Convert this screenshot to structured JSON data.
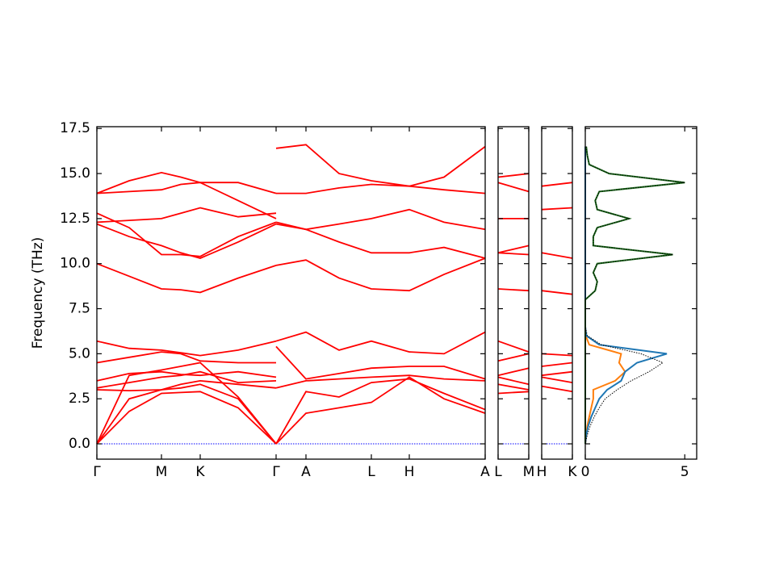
{
  "chart_data": {
    "type": "band",
    "ylabel": "Frequency (THz)",
    "ylim": [
      -0.85,
      17.6
    ],
    "yticks": [
      {
        "value": 0,
        "label": "0.0"
      },
      2.5,
      {
        "value": 5,
        "label": "5.0"
      },
      7.5,
      {
        "value": 10,
        "label": "10.0"
      },
      12.5,
      {
        "value": 15,
        "label": "15.0"
      },
      17.5
    ],
    "zero_line": 0,
    "band_color": "#ff0000",
    "zero_color": "#0000ff",
    "panels": [
      {
        "xlim": [
          0,
          4.81
        ],
        "xticks": [
          {
            "value": 0,
            "label": "Γ"
          },
          {
            "value": 0.8,
            "label": "M"
          },
          {
            "value": 1.28,
            "label": "K"
          },
          {
            "value": 2.22,
            "label": "Γ"
          },
          {
            "value": 2.59,
            "label": "A"
          },
          {
            "value": 3.4,
            "label": "L"
          },
          {
            "value": 3.87,
            "label": "H"
          },
          {
            "value": 4.81,
            "label": "A"
          }
        ],
        "segments": [
          {
            "x": [
              0,
              0.4,
              0.8,
              1.04,
              1.28,
              1.75,
              2.22
            ],
            "bands": [
              [
                0,
                1.8,
                2.8,
                2.85,
                2.9,
                2.0,
                0
              ],
              [
                0,
                2.5,
                3.0,
                3.1,
                3.3,
                2.5,
                0
              ],
              [
                0,
                3.8,
                4.1,
                4.3,
                4.5,
                2.6,
                0
              ],
              [
                3.0,
                2.95,
                3.0,
                3.3,
                3.5,
                3.3,
                3.1
              ],
              [
                3.1,
                3.4,
                3.7,
                3.8,
                4.0,
                3.4,
                3.5
              ],
              [
                3.5,
                3.9,
                4.0,
                3.85,
                3.8,
                4.0,
                3.7
              ],
              [
                4.5,
                4.8,
                5.1,
                5.0,
                4.6,
                4.5,
                4.5
              ],
              [
                5.7,
                5.3,
                5.2,
                5.05,
                4.9,
                5.2,
                5.7
              ],
              [
                10.0,
                9.3,
                8.6,
                8.55,
                8.4,
                9.2,
                9.9
              ],
              [
                12.2,
                11.5,
                11.0,
                10.6,
                10.3,
                11.2,
                12.2
              ],
              [
                12.8,
                12.0,
                10.5,
                10.5,
                10.4,
                11.5,
                12.3
              ],
              [
                12.3,
                12.4,
                12.5,
                12.8,
                13.1,
                12.6,
                12.8
              ],
              [
                13.9,
                14.0,
                14.1,
                14.4,
                14.5,
                13.5,
                12.5
              ],
              [
                13.9,
                14.6,
                15.05,
                14.8,
                14.5,
                14.5,
                13.9
              ]
            ]
          },
          {
            "x": [
              2.22,
              2.59,
              3.0,
              3.4,
              3.87,
              4.3,
              4.81
            ],
            "bands": [
              [
                0,
                1.7,
                2.0,
                2.3,
                3.7,
                2.5,
                1.7
              ],
              [
                0,
                2.9,
                2.6,
                3.4,
                3.6,
                2.8,
                1.9
              ],
              [
                3.1,
                3.5,
                3.6,
                3.7,
                3.8,
                3.6,
                3.5
              ],
              [
                5.4,
                3.6,
                3.9,
                4.2,
                4.3,
                4.3,
                3.6
              ],
              [
                5.7,
                6.2,
                5.2,
                5.7,
                5.1,
                5.0,
                6.2
              ],
              [
                9.9,
                10.2,
                9.2,
                8.6,
                8.5,
                9.4,
                10.3
              ],
              [
                12.2,
                11.9,
                11.2,
                10.6,
                10.6,
                10.9,
                10.3
              ],
              [
                12.3,
                11.9,
                12.2,
                12.5,
                13.0,
                12.3,
                11.9
              ],
              [
                13.9,
                13.9,
                14.2,
                14.4,
                14.3,
                14.1,
                13.9
              ],
              [
                16.4,
                16.6,
                15.0,
                14.6,
                14.3,
                14.8,
                16.5
              ]
            ]
          }
        ]
      },
      {
        "xlim": [
          0,
          0.38
        ],
        "xticks": [
          {
            "value": 0,
            "label": "L"
          },
          {
            "value": 0.38,
            "label": "M"
          }
        ],
        "segments": [
          {
            "x": [
              0,
              0.38
            ],
            "bands": [
              [
                14.5,
                14.0
              ],
              [
                14.8,
                15.0
              ],
              [
                12.5,
                12.5
              ],
              [
                10.6,
                11.0
              ],
              [
                10.6,
                10.5
              ],
              [
                8.6,
                8.5
              ],
              [
                5.7,
                5.1
              ],
              [
                4.6,
                5.0
              ],
              [
                3.8,
                4.2
              ],
              [
                3.7,
                3.3
              ],
              [
                3.3,
                3.0
              ],
              [
                2.8,
                2.9
              ]
            ]
          }
        ]
      },
      {
        "xlim": [
          0,
          0.38
        ],
        "xticks": [
          {
            "value": 0,
            "label": "H"
          },
          {
            "value": 0.38,
            "label": "K"
          }
        ],
        "segments": [
          {
            "x": [
              0,
              0.38
            ],
            "bands": [
              [
                14.3,
                14.5
              ],
              [
                13.0,
                13.1
              ],
              [
                10.6,
                10.3
              ],
              [
                8.5,
                8.3
              ],
              [
                5.0,
                4.9
              ],
              [
                4.3,
                4.5
              ],
              [
                3.8,
                4.0
              ],
              [
                3.7,
                3.4
              ],
              [
                3.2,
                2.9
              ]
            ]
          }
        ]
      }
    ],
    "dos": {
      "xlim": [
        0,
        5.6
      ],
      "xticks": [
        0,
        5
      ],
      "frequencies": [
        0,
        0.5,
        1,
        1.5,
        2,
        2.5,
        3,
        3.5,
        4,
        4.5,
        5,
        5.5,
        6,
        6.5,
        7,
        7.5,
        8,
        8.5,
        9,
        9.5,
        10,
        10.5,
        11,
        11.5,
        12,
        12.5,
        13,
        13.5,
        14,
        14.5,
        15,
        15.5,
        16,
        16.5
      ],
      "series": [
        {
          "color": "#000000",
          "style": "dotted",
          "values": [
            0,
            0.1,
            0.25,
            0.45,
            0.7,
            1.0,
            1.6,
            2.3,
            3.2,
            3.9,
            2.8,
            0.8,
            0.1,
            0,
            0,
            0,
            0,
            0.5,
            0.6,
            0.4,
            0.6,
            4.4,
            0.4,
            0.4,
            0.6,
            2.2,
            0.6,
            0.5,
            0.7,
            5.0,
            1.2,
            0.2,
            0.1,
            0.05
          ]
        },
        {
          "color": "#1a6b1a",
          "style": "solid",
          "values": [
            0,
            0,
            0,
            0,
            0,
            0,
            0,
            0,
            0,
            0,
            0,
            0,
            0,
            0,
            0,
            0,
            0,
            0.5,
            0.6,
            0.4,
            0.6,
            4.4,
            0.4,
            0.4,
            0.6,
            2.2,
            0.6,
            0.5,
            0.7,
            5.0,
            1.2,
            0.2,
            0.1,
            0.05
          ]
        },
        {
          "color": "#1f77b4",
          "style": "solid",
          "values": [
            0,
            0.05,
            0.15,
            0.3,
            0.5,
            0.7,
            1.1,
            1.8,
            2.0,
            2.6,
            4.1,
            0.7,
            0.05,
            0,
            0,
            0,
            0,
            0,
            0,
            0,
            0,
            0,
            0,
            0,
            0,
            0,
            0,
            0,
            0,
            0,
            0,
            0,
            0,
            0
          ]
        },
        {
          "color": "#ff7f0e",
          "style": "solid",
          "values": [
            0,
            0.05,
            0.1,
            0.2,
            0.3,
            0.4,
            0.4,
            1.5,
            2.0,
            1.7,
            1.8,
            0.2,
            0.02,
            0,
            0,
            0,
            0,
            0,
            0,
            0,
            0,
            0,
            0,
            0,
            0,
            0,
            0,
            0,
            0,
            0,
            0,
            0,
            0,
            0
          ]
        }
      ]
    }
  }
}
